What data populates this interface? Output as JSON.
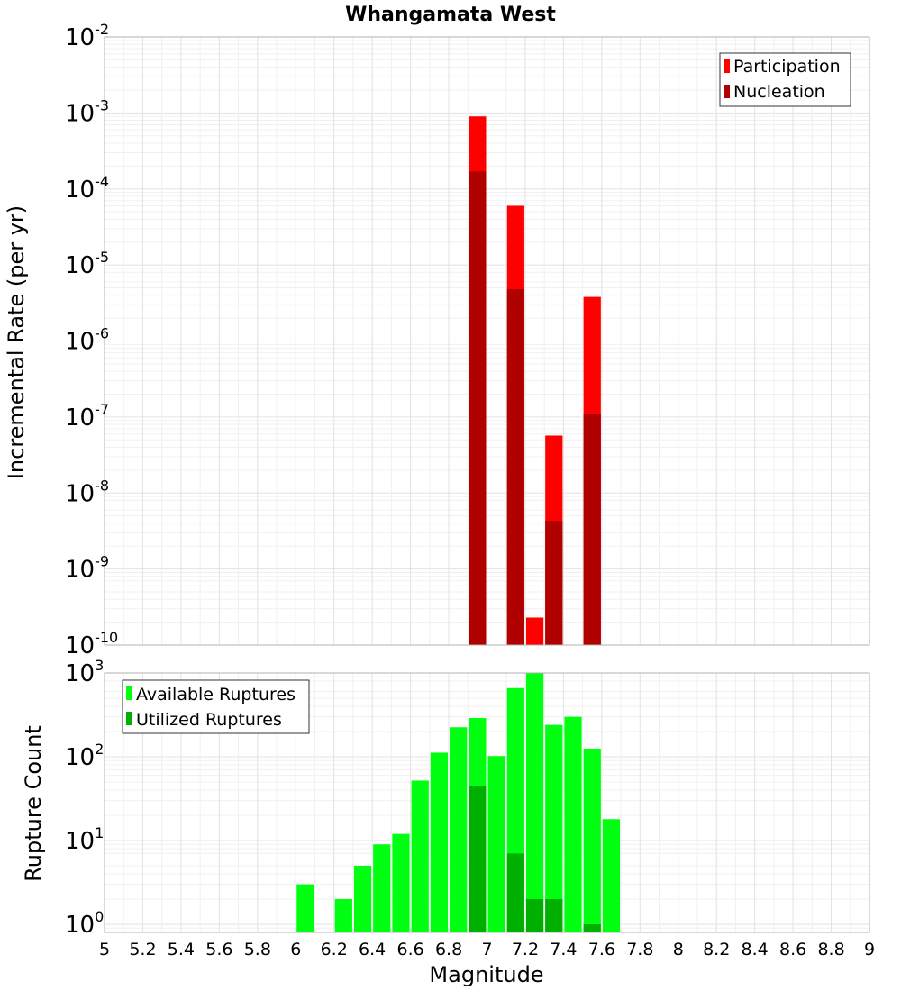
{
  "chart_data": [
    {
      "type": "bar",
      "title": "Whangamata West",
      "xlabel": "",
      "ylabel": "Incremental Rate (per yr)",
      "yscale": "log",
      "ylim": [
        1e-10,
        0.01
      ],
      "xlim": [
        5,
        9
      ],
      "grid": true,
      "legend_position": "top-right",
      "series": [
        {
          "name": "Participation",
          "color": "#ff0000",
          "x": [
            6.95,
            7.15,
            7.25,
            7.35,
            7.55
          ],
          "values": [
            0.0009,
            6e-05,
            2.3e-10,
            5.7e-08,
            3.8e-06
          ]
        },
        {
          "name": "Nucleation",
          "color": "#b00000",
          "x": [
            6.95,
            7.15,
            7.35,
            7.55
          ],
          "values": [
            0.00017,
            4.8e-06,
            4.3e-09,
            1.1e-07
          ]
        }
      ]
    },
    {
      "type": "bar",
      "xlabel": "Magnitude",
      "ylabel": "Rupture Count",
      "yscale": "log",
      "ylim": [
        0.8,
        1000
      ],
      "xlim": [
        5,
        9
      ],
      "xticks": [
        "5",
        "5.2",
        "5.4",
        "5.6",
        "5.8",
        "6",
        "6.2",
        "6.4",
        "6.6",
        "6.8",
        "7",
        "7.2",
        "7.4",
        "7.6",
        "7.8",
        "8",
        "8.2",
        "8.4",
        "8.6",
        "8.8",
        "9"
      ],
      "grid": true,
      "legend_position": "top-left",
      "series": [
        {
          "name": "Available Ruptures",
          "color": "#00ff10",
          "x": [
            6.05,
            6.25,
            6.35,
            6.45,
            6.55,
            6.65,
            6.75,
            6.85,
            6.95,
            7.05,
            7.15,
            7.25,
            7.35,
            7.45,
            7.55,
            7.65
          ],
          "values": [
            3,
            2,
            5,
            9,
            12,
            52,
            112,
            225,
            290,
            102,
            660,
            1000,
            240,
            300,
            125,
            18
          ]
        },
        {
          "name": "Utilized Ruptures",
          "color": "#00b000",
          "x": [
            6.95,
            7.15,
            7.25,
            7.35,
            7.55
          ],
          "values": [
            45,
            7,
            2,
            2,
            1
          ]
        }
      ]
    }
  ],
  "top_y_ticks": [
    {
      "base": "10",
      "exp": "-2"
    },
    {
      "base": "10",
      "exp": "-3"
    },
    {
      "base": "10",
      "exp": "-4"
    },
    {
      "base": "10",
      "exp": "-5"
    },
    {
      "base": "10",
      "exp": "-6"
    },
    {
      "base": "10",
      "exp": "-7"
    },
    {
      "base": "10",
      "exp": "-8"
    },
    {
      "base": "10",
      "exp": "-9"
    },
    {
      "base": "10",
      "exp": "-10"
    }
  ],
  "bottom_y_ticks": [
    {
      "base": "10",
      "exp": "3"
    },
    {
      "base": "10",
      "exp": "2"
    },
    {
      "base": "10",
      "exp": "1"
    },
    {
      "base": "10",
      "exp": "0"
    }
  ]
}
